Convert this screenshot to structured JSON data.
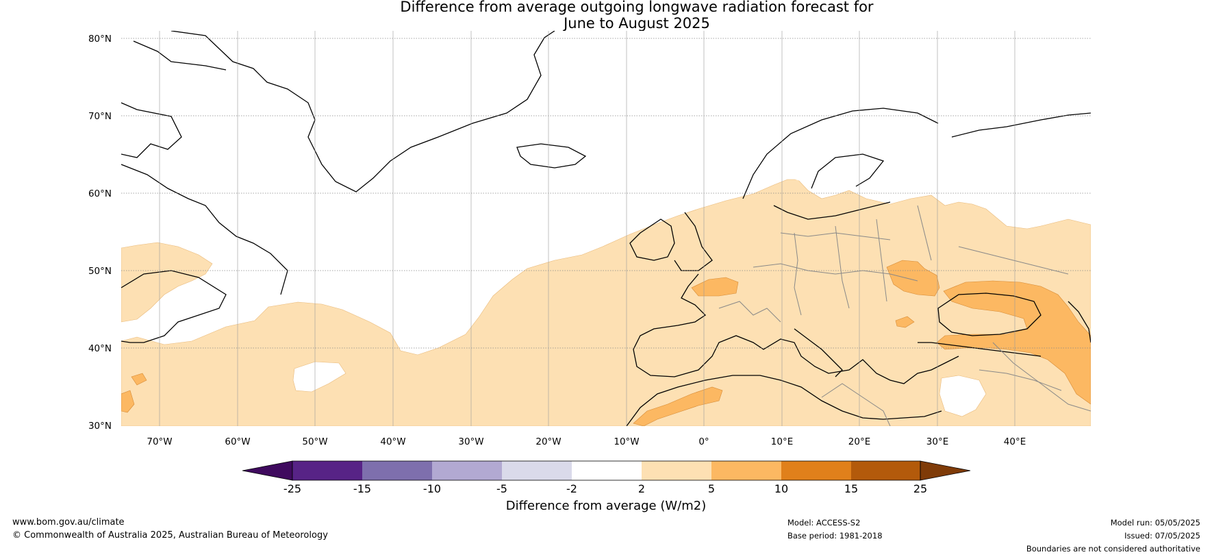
{
  "title": {
    "line1": "Difference from average outgoing longwave radiation forecast for",
    "line2": "June to August 2025"
  },
  "map": {
    "lat_labels": [
      "80°N",
      "70°N",
      "60°N",
      "50°N",
      "40°N",
      "30°N"
    ],
    "lon_labels": [
      "70°W",
      "60°W",
      "50°W",
      "40°W",
      "30°W",
      "20°W",
      "10°W",
      "0°",
      "10°E",
      "20°E",
      "30°E",
      "40°E"
    ]
  },
  "colorbar": {
    "label": "Difference from average (W/m2)",
    "ticks": [
      "-25",
      "-15",
      "-10",
      "-5",
      "-2",
      "2",
      "5",
      "10",
      "15",
      "25"
    ],
    "colors": [
      "#3f0a5e",
      "#572386",
      "#7e6fad",
      "#b2a9d2",
      "#dadaea",
      "#ffffff",
      "#fde0b3",
      "#fcb862",
      "#e0801b",
      "#b35a0b",
      "#7f3b08"
    ]
  },
  "footer": {
    "url": "www.bom.gov.au/climate",
    "copyright": "© Commonwealth of Australia 2025, Australian Bureau of Meteorology",
    "model": "Model: ACCESS-S2",
    "base_period": "Base period: 1981-2018",
    "model_run": "Model run: 05/05/2025",
    "issued": "Issued: 07/05/2025",
    "disclaimer": "Boundaries are not considered authoritative"
  }
}
